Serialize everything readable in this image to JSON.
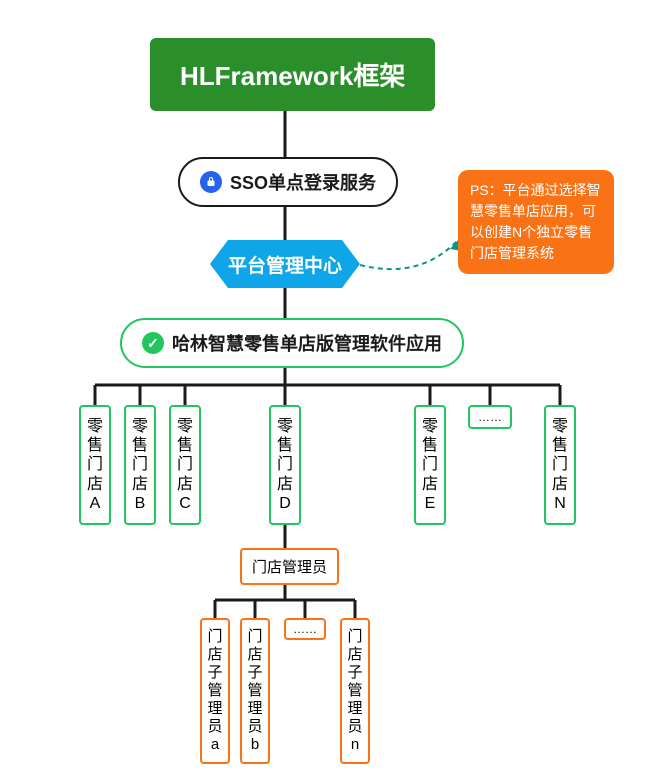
{
  "title": "HLFramework框架",
  "sso": "SSO单点登录服务",
  "platform": "平台管理中心",
  "app": "哈林智慧零售单店版管理软件应用",
  "note": "PS：平台通过选择智慧零售单店应用，可以创建N个独立零售门店管理系统",
  "stores": {
    "a": "零售门店A",
    "b": "零售门店B",
    "c": "零售门店C",
    "d": "零售门店D",
    "e": "零售门店E",
    "n": "零售门店N",
    "dots": "……"
  },
  "admin": "门店管理员",
  "subs": {
    "a": "门店子管理员a",
    "b": "门店子管理员b",
    "n": "门店子管理员n",
    "dots": "……"
  },
  "colors": {
    "title_bg": "#2a8f2a",
    "hex_bg": "#0ea5e9",
    "store_border": "#22c55e",
    "admin_border": "#f97316",
    "note_bg": "#f97316",
    "line": "#1a1a1a",
    "dashed": "#0d9488"
  }
}
